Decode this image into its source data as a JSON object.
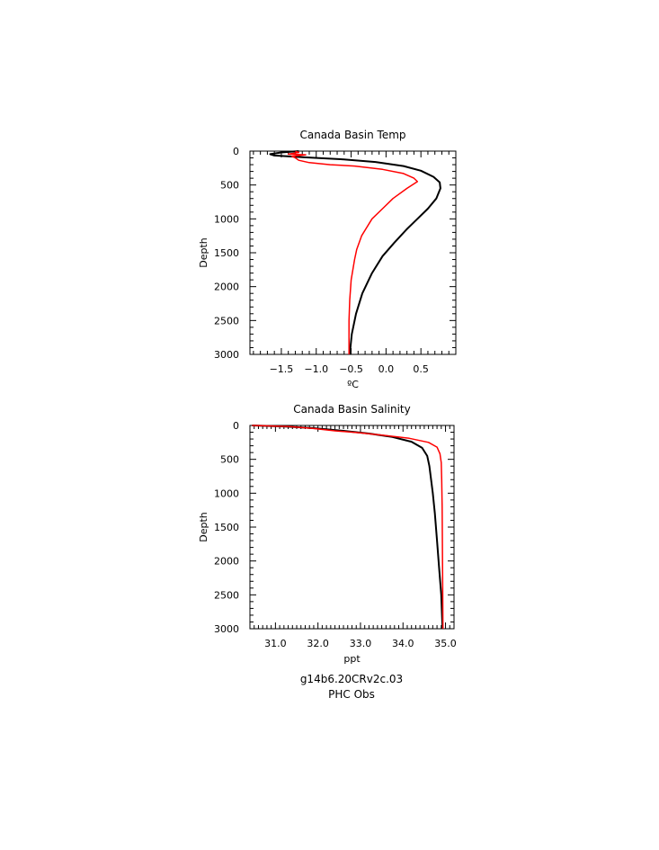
{
  "chart_data": [
    {
      "type": "line",
      "title": "Canada Basin Temp",
      "xlabel": "ºC",
      "ylabel": "Depth",
      "xlim": [
        -1.95,
        1.0
      ],
      "ylim": [
        3000,
        0
      ],
      "x_major_ticks": [
        -1.5,
        -1.0,
        -0.5,
        0.0,
        0.5
      ],
      "x_tick_labels": [
        "−1.5",
        "−1.0",
        "−0.5",
        "0.0",
        "0.5"
      ],
      "x_minor_ticks": [
        -1.9,
        -1.8,
        -1.7,
        -1.6,
        -1.4,
        -1.3,
        -1.2,
        -1.1,
        -0.9,
        -0.8,
        -0.7,
        -0.6,
        -0.4,
        -0.3,
        -0.2,
        -0.1,
        0.1,
        0.2,
        0.3,
        0.4,
        0.6,
        0.7,
        0.8,
        0.9
      ],
      "y_major_ticks": [
        0,
        500,
        1000,
        1500,
        2000,
        2500,
        3000
      ],
      "y_tick_labels": [
        "0",
        "500",
        "1000",
        "1500",
        "2000",
        "2500",
        "3000"
      ],
      "y_minor_step": 100,
      "grid": false,
      "series": [
        {
          "name": "g14b6.20CRv2c.03",
          "color": "#000000",
          "points": [
            [
              -1.25,
              0
            ],
            [
              -1.5,
              20
            ],
            [
              -1.66,
              45
            ],
            [
              -1.6,
              65
            ],
            [
              -1.2,
              90
            ],
            [
              -0.65,
              120
            ],
            [
              -0.15,
              160
            ],
            [
              0.25,
              220
            ],
            [
              0.5,
              290
            ],
            [
              0.68,
              380
            ],
            [
              0.77,
              460
            ],
            [
              0.78,
              550
            ],
            [
              0.72,
              700
            ],
            [
              0.6,
              850
            ],
            [
              0.45,
              1000
            ],
            [
              0.3,
              1150
            ],
            [
              0.12,
              1350
            ],
            [
              -0.05,
              1550
            ],
            [
              -0.2,
              1800
            ],
            [
              -0.34,
              2100
            ],
            [
              -0.43,
              2400
            ],
            [
              -0.49,
              2700
            ],
            [
              -0.52,
              3000
            ]
          ]
        },
        {
          "name": "PHC Obs",
          "color": "#ff0000",
          "points": [
            [
              -1.3,
              5
            ],
            [
              -1.25,
              20
            ],
            [
              -1.4,
              45
            ],
            [
              -1.15,
              55
            ],
            [
              -1.35,
              75
            ],
            [
              -1.3,
              100
            ],
            [
              -1.25,
              135
            ],
            [
              -1.1,
              170
            ],
            [
              -0.8,
              200
            ],
            [
              -0.45,
              220
            ],
            [
              -0.05,
              270
            ],
            [
              0.25,
              330
            ],
            [
              0.4,
              400
            ],
            [
              0.45,
              450
            ],
            [
              0.3,
              550
            ],
            [
              0.1,
              700
            ],
            [
              -0.05,
              850
            ],
            [
              -0.2,
              1000
            ],
            [
              -0.35,
              1250
            ],
            [
              -0.42,
              1450
            ],
            [
              -0.45,
              1600
            ],
            [
              -0.5,
              1900
            ],
            [
              -0.52,
              2200
            ],
            [
              -0.53,
              2500
            ],
            [
              -0.53,
              3000
            ]
          ]
        }
      ]
    },
    {
      "type": "line",
      "title": "Canada Basin Salinity",
      "xlabel": "ppt",
      "ylabel": "Depth",
      "xlim": [
        30.4,
        35.2
      ],
      "ylim": [
        3000,
        0
      ],
      "x_major_ticks": [
        31.0,
        32.0,
        33.0,
        34.0,
        35.0
      ],
      "x_tick_labels": [
        "31.0",
        "32.0",
        "33.0",
        "34.0",
        "35.0"
      ],
      "x_minor_ticks": [
        30.5,
        30.6,
        30.7,
        30.8,
        30.9,
        31.1,
        31.2,
        31.3,
        31.4,
        31.5,
        31.6,
        31.7,
        31.8,
        31.9,
        32.1,
        32.2,
        32.3,
        32.4,
        32.5,
        32.6,
        32.7,
        32.8,
        32.9,
        33.1,
        33.2,
        33.3,
        33.4,
        33.5,
        33.6,
        33.7,
        33.8,
        33.9,
        34.1,
        34.2,
        34.3,
        34.4,
        34.5,
        34.6,
        34.7,
        34.8,
        34.9,
        35.1
      ],
      "y_major_ticks": [
        0,
        500,
        1000,
        1500,
        2000,
        2500,
        3000
      ],
      "y_tick_labels": [
        "0",
        "500",
        "1000",
        "1500",
        "2000",
        "2500",
        "3000"
      ],
      "y_minor_step": 100,
      "grid": false,
      "series": [
        {
          "name": "g14b6.20CRv2c.03",
          "color": "#000000",
          "points": [
            [
              30.45,
              0
            ],
            [
              31.2,
              15
            ],
            [
              31.9,
              40
            ],
            [
              32.6,
              80
            ],
            [
              33.2,
              120
            ],
            [
              33.75,
              170
            ],
            [
              34.2,
              240
            ],
            [
              34.45,
              330
            ],
            [
              34.57,
              450
            ],
            [
              34.62,
              600
            ],
            [
              34.66,
              800
            ],
            [
              34.7,
              1000
            ],
            [
              34.75,
              1300
            ],
            [
              34.8,
              1700
            ],
            [
              34.85,
              2100
            ],
            [
              34.9,
              2500
            ],
            [
              34.93,
              3000
            ]
          ]
        },
        {
          "name": "PHC Obs",
          "color": "#ff0000",
          "points": [
            [
              30.45,
              0
            ],
            [
              31.3,
              15
            ],
            [
              31.9,
              45
            ],
            [
              32.4,
              80
            ],
            [
              33.0,
              110
            ],
            [
              33.6,
              150
            ],
            [
              34.15,
              190
            ],
            [
              34.6,
              250
            ],
            [
              34.8,
              320
            ],
            [
              34.87,
              420
            ],
            [
              34.9,
              550
            ],
            [
              34.91,
              800
            ],
            [
              34.92,
              1200
            ],
            [
              34.93,
              2000
            ],
            [
              34.94,
              3000
            ]
          ]
        }
      ]
    }
  ],
  "legend": {
    "entries": [
      {
        "label": "g14b6.20CRv2c.03",
        "color": "#000000"
      },
      {
        "label": "PHC Obs",
        "color": "#ff0000"
      }
    ]
  }
}
